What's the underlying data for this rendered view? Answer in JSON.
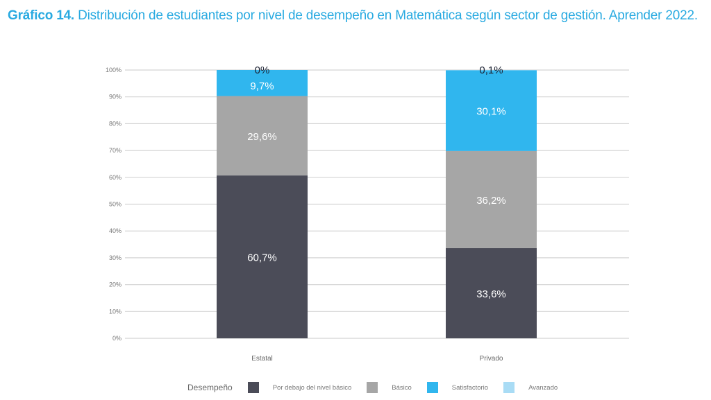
{
  "header": {
    "title_bold": "Gráfico 14.",
    "title_rest": " Distribución de estudiantes por nivel de desempeño en Matemática según sector de gestión. Aprender 2022."
  },
  "chart_data": {
    "type": "bar",
    "stacked": true,
    "title": "Gráfico 14. Distribución de estudiantes por nivel de desempeño en Matemática según sector de gestión. Aprender 2022.",
    "xlabel": "",
    "ylabel": "",
    "ylim": [
      0,
      100
    ],
    "grid": true,
    "y_ticks": [
      "0%",
      "10%",
      "20%",
      "30%",
      "40%",
      "50%",
      "60%",
      "70%",
      "80%",
      "90%",
      "100%"
    ],
    "categories": [
      "Estatal",
      "Privado"
    ],
    "legend_title": "Desempeño",
    "legend_position": "bottom",
    "series": [
      {
        "name": "Por debajo del nivel básico",
        "color": "#4b4c58",
        "label_color": "#ffffff",
        "values": [
          60.7,
          33.6
        ],
        "labels": [
          "60,7%",
          "33,6%"
        ]
      },
      {
        "name": "Básico",
        "color": "#a6a6a6",
        "label_color": "#ffffff",
        "values": [
          29.6,
          36.2
        ],
        "labels": [
          "29,6%",
          "36,2%"
        ]
      },
      {
        "name": "Satisfactorio",
        "color": "#30b6ee",
        "label_color": "#ffffff",
        "values": [
          9.7,
          30.1
        ],
        "labels": [
          "9,7%",
          "30,1%"
        ]
      },
      {
        "name": "Avanzado",
        "color": "#a9dcf5",
        "label_color": "#1c2233",
        "values": [
          0,
          0.1
        ],
        "labels": [
          "0%",
          "0,1%"
        ]
      }
    ]
  }
}
